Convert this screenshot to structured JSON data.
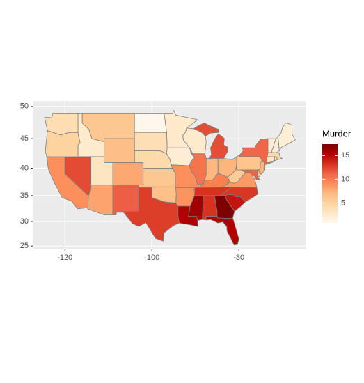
{
  "chart_data": {
    "type": "choropleth",
    "legend_title": "Murder",
    "values": [
      13.2,
      8.1,
      8.8,
      9.0,
      7.9,
      3.3,
      5.9,
      15.4,
      17.4,
      2.6,
      10.4,
      7.2,
      2.2,
      6.0,
      9.7,
      15.4,
      2.1,
      11.3,
      4.4,
      12.1,
      2.7,
      16.1,
      9.0,
      6.0,
      4.3,
      12.2,
      2.1,
      7.4,
      11.4,
      11.1,
      13.0,
      0.8,
      7.3,
      6.6,
      4.9,
      6.3,
      3.4,
      14.4,
      3.8,
      13.2,
      12.7,
      3.2,
      2.2,
      8.5,
      4.0,
      5.7,
      2.6,
      6.8
    ],
    "xlim": [
      -127.4,
      -64.5
    ],
    "xticks": [
      -120,
      -100,
      -80
    ],
    "ylim": [
      24.3,
      50.8
    ],
    "yticks": [
      25,
      30,
      35,
      40,
      45,
      50
    ],
    "projection": "mercator",
    "grid": true,
    "palette": [
      "#fff7ec",
      "#fee8c8",
      "#fdd49e",
      "#fdbb84",
      "#fc8d59",
      "#ef6548",
      "#d7301f",
      "#b30000",
      "#7f0000"
    ],
    "clim": [
      0.8,
      17.4
    ],
    "legend_ticks": [
      5,
      10,
      15
    ]
  }
}
